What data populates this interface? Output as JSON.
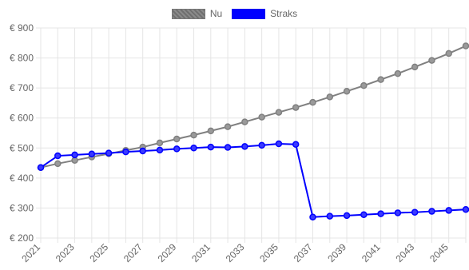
{
  "chart_data": {
    "type": "line",
    "x": [
      2021,
      2022,
      2023,
      2024,
      2025,
      2026,
      2027,
      2028,
      2029,
      2030,
      2031,
      2032,
      2033,
      2034,
      2035,
      2036,
      2037,
      2038,
      2039,
      2040,
      2041,
      2042,
      2043,
      2044,
      2045,
      2046
    ],
    "x_tick_labels": [
      "2021",
      "2023",
      "2025",
      "2027",
      "2029",
      "2031",
      "2033",
      "2035",
      "2037",
      "2039",
      "2041",
      "2043",
      "2045"
    ],
    "y_tick_labels": [
      "€ 200",
      "€ 300",
      "€ 400",
      "€ 500",
      "€ 600",
      "€ 700",
      "€ 800",
      "€ 900"
    ],
    "ylim": [
      200,
      900
    ],
    "y_ticks": [
      200,
      300,
      400,
      500,
      600,
      700,
      800,
      900
    ],
    "grid": true,
    "legend_position": "top-center",
    "series": [
      {
        "name": "Nu",
        "color": "#808080",
        "values": [
          435,
          448,
          459,
          470,
          481,
          492,
          503,
          517,
          530,
          543,
          557,
          571,
          587,
          603,
          619,
          635,
          652,
          670,
          689,
          708,
          728,
          748,
          770,
          792,
          815,
          840
        ]
      },
      {
        "name": "Straks",
        "color": "#0000ff",
        "values": [
          435,
          474,
          477,
          480,
          483,
          487,
          490,
          493,
          497,
          500,
          503,
          502,
          505,
          509,
          514,
          512,
          270,
          273,
          275,
          278,
          281,
          284,
          286,
          289,
          292,
          295
        ]
      }
    ]
  }
}
